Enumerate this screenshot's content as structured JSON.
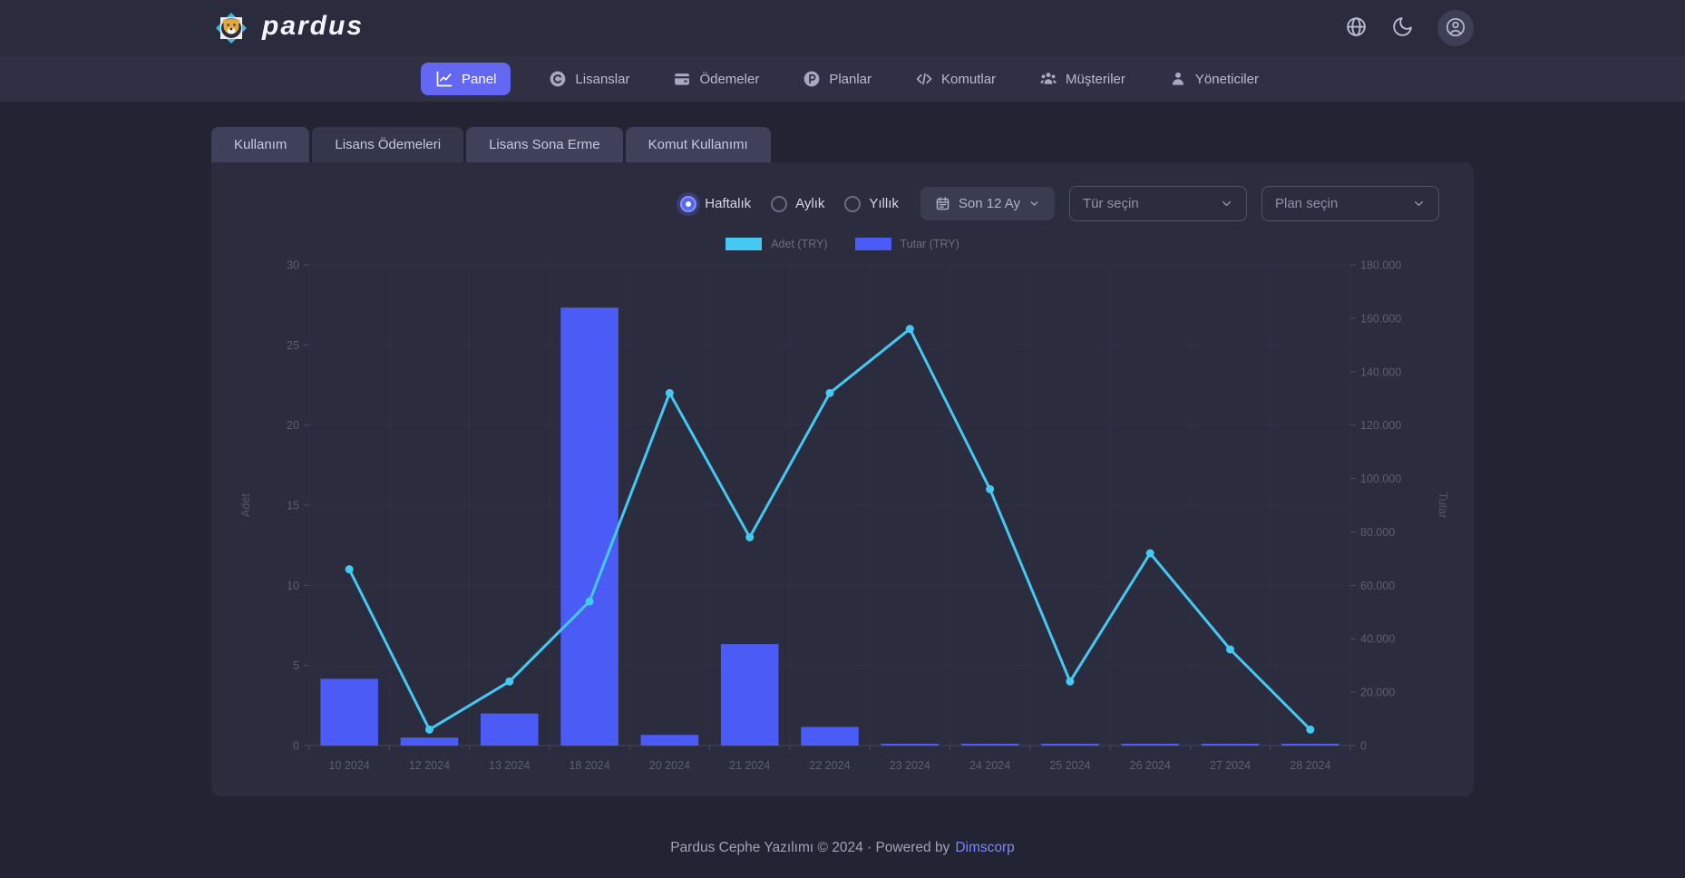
{
  "header": {
    "brand": "pardus",
    "action_icons": [
      "globe-icon",
      "moon-icon",
      "user-avatar-icon"
    ]
  },
  "nav": {
    "items": [
      {
        "label": "Panel",
        "icon": "chart-line-icon",
        "active": true
      },
      {
        "label": "Lisanslar",
        "icon": "circle-c-icon",
        "active": false
      },
      {
        "label": "Ödemeler",
        "icon": "wallet-icon",
        "active": false
      },
      {
        "label": "Planlar",
        "icon": "circle-p-icon",
        "active": false
      },
      {
        "label": "Komutlar",
        "icon": "code-icon",
        "active": false
      },
      {
        "label": "Müşteriler",
        "icon": "users-icon",
        "active": false
      },
      {
        "label": "Yöneticiler",
        "icon": "user-icon",
        "active": false
      }
    ]
  },
  "tabs": [
    {
      "label": "Kullanım",
      "active": false
    },
    {
      "label": "Lisans Ödemeleri",
      "active": true
    },
    {
      "label": "Lisans Sona Erme",
      "active": false
    },
    {
      "label": "Komut Kullanımı",
      "active": false
    }
  ],
  "controls": {
    "period_options": [
      {
        "label": "Haftalık",
        "selected": true
      },
      {
        "label": "Aylık",
        "selected": false
      },
      {
        "label": "Yıllık",
        "selected": false
      }
    ],
    "date_range_label": "Son 12 Ay",
    "type_select_placeholder": "Tür seçin",
    "plan_select_placeholder": "Plan seçin"
  },
  "chart_data": {
    "type": "combo-bar-line",
    "categories": [
      "10 2024",
      "12 2024",
      "13 2024",
      "18 2024",
      "20 2024",
      "21 2024",
      "22 2024",
      "23 2024",
      "24 2024",
      "25 2024",
      "26 2024",
      "27 2024",
      "28 2024"
    ],
    "series": [
      {
        "name": "Adet (TRY)",
        "type": "line",
        "axis": "left",
        "color": "#45c8f1",
        "values": [
          11,
          1,
          4,
          9,
          22,
          13,
          22,
          26,
          16,
          4,
          12,
          6,
          1
        ]
      },
      {
        "name": "Tutar (TRY)",
        "type": "bar",
        "axis": "right",
        "color": "#4b5bf5",
        "values": [
          25000,
          3000,
          12000,
          164000,
          4000,
          38000,
          7000,
          500,
          600,
          600,
          400,
          600,
          600
        ]
      }
    ],
    "left_axis": {
      "label": "Adet",
      "min": 0,
      "max": 30,
      "step": 5
    },
    "right_axis": {
      "label": "Tutar",
      "min": 0,
      "max": 180000,
      "step": 20000
    },
    "grid": true,
    "legend_position": "top"
  },
  "footer": {
    "text": "Pardus Cephe Yazılımı © 2024 · Powered by",
    "link_label": "Dimscorp"
  }
}
